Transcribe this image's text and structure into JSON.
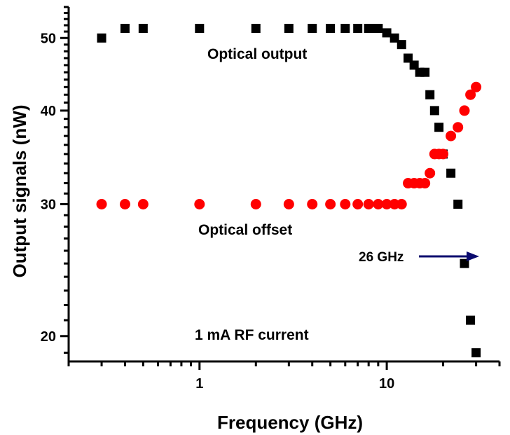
{
  "chart_data": {
    "type": "scatter",
    "xlabel": "Frequency (GHz)",
    "ylabel": "Output signals (nW)",
    "xscale": "log",
    "yscale": "log",
    "xlim": [
      0.2,
      40
    ],
    "ylim": [
      18.5,
      55
    ],
    "x_ticks": [
      1,
      10
    ],
    "x_tick_labels": [
      "1",
      "10"
    ],
    "y_ticks": [
      20,
      30,
      40,
      50
    ],
    "y_tick_labels": [
      "20",
      "30",
      "40",
      "50"
    ],
    "grid": false,
    "legend": "none",
    "series": [
      {
        "marker": "square",
        "color": "#000000",
        "x": [
          0.3,
          0.4,
          0.5,
          1,
          2,
          3,
          4,
          5,
          6,
          7,
          8,
          8.5,
          9,
          10,
          11,
          12,
          13,
          14,
          15,
          16,
          17,
          18,
          19,
          20,
          22,
          24,
          26,
          28,
          30
        ],
        "y": [
          50,
          51.5,
          51.5,
          51.5,
          51.5,
          51.5,
          51.5,
          51.5,
          51.5,
          51.5,
          51.5,
          51.5,
          51.5,
          50.8,
          50,
          49,
          47,
          46,
          45,
          45,
          42,
          40,
          38,
          35,
          33,
          30,
          25,
          21,
          19
        ]
      },
      {
        "marker": "circle",
        "color": "#ff0000",
        "x": [
          0.3,
          0.4,
          0.5,
          1,
          2,
          3,
          4,
          5,
          6,
          7,
          8,
          9,
          10,
          11,
          12,
          13,
          14,
          15,
          16,
          17,
          18,
          19,
          20,
          22,
          24,
          26,
          28,
          30
        ],
        "y": [
          30,
          30,
          30,
          30,
          30,
          30,
          30,
          30,
          30,
          30,
          30,
          30,
          30,
          30,
          30,
          32,
          32,
          32,
          32,
          33,
          35,
          35,
          35,
          37,
          38,
          40,
          42,
          43
        ]
      }
    ],
    "annotations": {
      "optical_output": "Optical output",
      "optical_offset": "Optical offset",
      "cutoff_label": "26 GHz",
      "rf_current": "1 mA RF current"
    },
    "arrow_color": "#0a0a6e"
  }
}
